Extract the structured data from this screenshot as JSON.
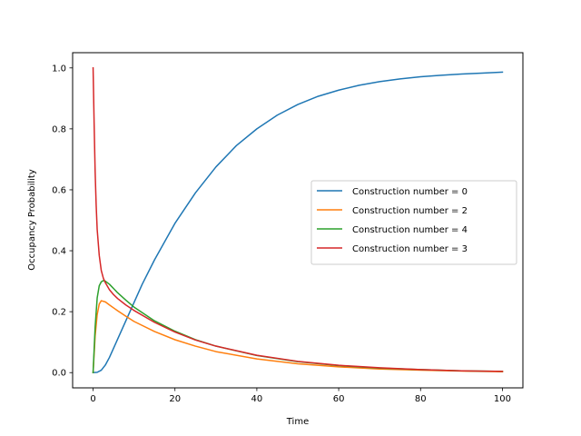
{
  "chart_data": {
    "type": "line",
    "title": "",
    "xlabel": "Time",
    "ylabel": "Occupancy Probability",
    "xlim": [
      -5,
      105
    ],
    "ylim": [
      -0.05,
      1.05
    ],
    "xticks": [
      0,
      20,
      40,
      60,
      80,
      100
    ],
    "xtick_labels": [
      "0",
      "20",
      "40",
      "60",
      "80",
      "100"
    ],
    "yticks": [
      0.0,
      0.2,
      0.4,
      0.6,
      0.8,
      1.0
    ],
    "ytick_labels": [
      "0.0",
      "0.2",
      "0.4",
      "0.6",
      "0.8",
      "1.0"
    ],
    "grid": false,
    "legend_position": "center-right",
    "series": [
      {
        "name": "Construction number = 0",
        "color": "#1f77b4",
        "x": [
          0,
          1,
          2,
          3,
          4,
          6,
          8,
          10,
          12,
          15,
          20,
          25,
          30,
          35,
          40,
          45,
          50,
          55,
          60,
          65,
          70,
          75,
          80,
          85,
          90,
          95,
          100
        ],
        "y": [
          0.0,
          0.001,
          0.008,
          0.025,
          0.05,
          0.11,
          0.17,
          0.23,
          0.29,
          0.37,
          0.49,
          0.59,
          0.675,
          0.745,
          0.8,
          0.845,
          0.88,
          0.907,
          0.927,
          0.943,
          0.955,
          0.964,
          0.971,
          0.976,
          0.98,
          0.983,
          0.986
        ]
      },
      {
        "name": "Construction number = 2",
        "color": "#ff7f0e",
        "x": [
          0,
          0.5,
          1,
          1.5,
          2,
          3,
          4,
          6,
          8,
          10,
          15,
          20,
          25,
          30,
          40,
          50,
          60,
          70,
          80,
          90,
          100
        ],
        "y": [
          0.0,
          0.12,
          0.19,
          0.225,
          0.236,
          0.232,
          0.222,
          0.203,
          0.185,
          0.168,
          0.135,
          0.108,
          0.087,
          0.069,
          0.045,
          0.029,
          0.019,
          0.012,
          0.008,
          0.005,
          0.003
        ]
      },
      {
        "name": "Construction number = 4",
        "color": "#2ca02c",
        "x": [
          0,
          0.5,
          1,
          1.5,
          2,
          2.5,
          3,
          4,
          5,
          6,
          8,
          10,
          15,
          20,
          25,
          30,
          40,
          50,
          60,
          70,
          80,
          90,
          100
        ],
        "y": [
          0.0,
          0.15,
          0.245,
          0.285,
          0.298,
          0.302,
          0.3,
          0.29,
          0.276,
          0.262,
          0.238,
          0.215,
          0.17,
          0.136,
          0.108,
          0.087,
          0.056,
          0.036,
          0.023,
          0.015,
          0.01,
          0.006,
          0.004
        ]
      },
      {
        "name": "Construction number = 3",
        "color": "#d62728",
        "x": [
          0,
          0.25,
          0.5,
          0.75,
          1,
          1.5,
          2,
          2.5,
          3,
          4,
          5,
          6,
          8,
          10,
          15,
          20,
          25,
          30,
          40,
          50,
          60,
          70,
          80,
          90,
          100
        ],
        "y": [
          1.0,
          0.82,
          0.66,
          0.55,
          0.47,
          0.385,
          0.335,
          0.31,
          0.295,
          0.272,
          0.256,
          0.243,
          0.222,
          0.204,
          0.165,
          0.133,
          0.107,
          0.087,
          0.057,
          0.037,
          0.024,
          0.016,
          0.01,
          0.006,
          0.004
        ]
      }
    ]
  }
}
